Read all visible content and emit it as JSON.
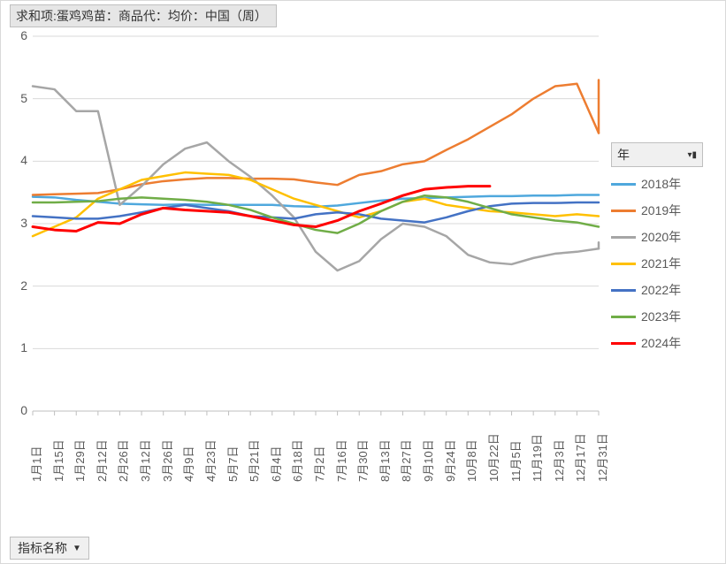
{
  "title": "求和项:蛋鸡鸡苗：商品代：均价：中国（周）",
  "legend_header": "年",
  "footer_button": "指标名称",
  "chart": {
    "type": "line",
    "background_color": "#ffffff",
    "plot_bg_color": "#ffffff",
    "grid_color": "#d9d9d9",
    "axis_color": "#bfbfbf",
    "ylim": [
      0,
      6
    ],
    "ytick_step": 1,
    "y_ticks": [
      0,
      1,
      2,
      3,
      4,
      5,
      6
    ],
    "x_labels": [
      "1月1日",
      "1月15日",
      "1月29日",
      "2月12日",
      "2月26日",
      "3月12日",
      "3月26日",
      "4月9日",
      "4月23日",
      "5月7日",
      "5月21日",
      "6月4日",
      "6月18日",
      "7月2日",
      "7月16日",
      "7月30日",
      "8月13日",
      "8月27日",
      "9月10日",
      "9月24日",
      "10月8日",
      "10月22日",
      "11月5日",
      "11月19日",
      "12月3日",
      "12月17日",
      "12月31日"
    ],
    "series": [
      {
        "name": "2018年",
        "color": "#4fa8dd",
        "width": 2.5,
        "values": [
          3.43,
          3.42,
          3.38,
          3.35,
          3.32,
          3.31,
          3.3,
          3.31,
          3.3,
          3.3,
          3.3,
          3.3,
          3.28,
          3.27,
          3.29,
          3.33,
          3.37,
          3.4,
          3.41,
          3.42,
          3.43,
          3.44,
          3.44,
          3.45,
          3.45,
          3.46,
          3.46
        ]
      },
      {
        "name": "2019年",
        "color": "#ed7d31",
        "width": 2.5,
        "values": [
          3.46,
          3.47,
          3.48,
          3.49,
          3.55,
          3.63,
          3.68,
          3.71,
          3.73,
          3.73,
          3.72,
          3.72,
          3.71,
          3.66,
          3.62,
          3.78,
          3.84,
          3.95,
          4.0,
          4.18,
          4.35,
          4.55,
          4.75,
          5.0,
          5.2,
          5.24,
          4.45
        ]
      },
      {
        "name": "2019年_tail",
        "color": "#ed7d31",
        "width": 2.5,
        "values_partial": {
          "26": 5.3
        },
        "hidden_in_legend": true
      },
      {
        "name": "2020年",
        "color": "#a6a6a6",
        "width": 2.5,
        "values": [
          5.2,
          5.15,
          4.8,
          4.8,
          3.3,
          3.6,
          3.95,
          4.2,
          4.3,
          4.0,
          3.75,
          3.45,
          3.1,
          2.55,
          2.25,
          2.4,
          2.75,
          3.0,
          2.95,
          2.8,
          2.5,
          2.38,
          2.35,
          2.45,
          2.52,
          2.55,
          2.6
        ]
      },
      {
        "name": "2020年_tail",
        "color": "#a6a6a6",
        "width": 2.5,
        "values_partial": {
          "26": 2.7
        },
        "hidden_in_legend": true
      },
      {
        "name": "2021年",
        "color": "#ffc000",
        "width": 2.5,
        "values": [
          2.8,
          2.95,
          3.1,
          3.4,
          3.55,
          3.7,
          3.76,
          3.82,
          3.8,
          3.78,
          3.7,
          3.55,
          3.4,
          3.3,
          3.2,
          3.1,
          3.2,
          3.35,
          3.4,
          3.3,
          3.25,
          3.2,
          3.18,
          3.15,
          3.12,
          3.15,
          3.12
        ]
      },
      {
        "name": "2022年",
        "color": "#4472c4",
        "width": 2.5,
        "values": [
          3.12,
          3.1,
          3.08,
          3.08,
          3.12,
          3.18,
          3.25,
          3.3,
          3.25,
          3.2,
          3.12,
          3.1,
          3.08,
          3.15,
          3.18,
          3.15,
          3.08,
          3.05,
          3.02,
          3.1,
          3.2,
          3.28,
          3.32,
          3.33,
          3.33,
          3.34,
          3.34
        ]
      },
      {
        "name": "2023年",
        "color": "#70ad47",
        "width": 2.5,
        "values": [
          3.34,
          3.34,
          3.35,
          3.36,
          3.4,
          3.42,
          3.4,
          3.38,
          3.35,
          3.3,
          3.22,
          3.1,
          3.0,
          2.9,
          2.85,
          3.0,
          3.2,
          3.35,
          3.45,
          3.42,
          3.35,
          3.25,
          3.15,
          3.1,
          3.05,
          3.02,
          2.95
        ]
      },
      {
        "name": "2024年",
        "color": "#ff0000",
        "width": 3,
        "values": [
          2.95,
          2.9,
          2.88,
          3.02,
          3.0,
          3.15,
          3.25,
          3.22,
          3.2,
          3.18,
          3.12,
          3.05,
          2.98,
          2.95,
          3.05,
          3.2,
          3.32,
          3.45,
          3.55,
          3.58,
          3.6,
          3.6,
          null,
          null,
          null,
          null,
          null
        ]
      }
    ],
    "legend_items": [
      {
        "label": "2018年",
        "color": "#4fa8dd"
      },
      {
        "label": "2019年",
        "color": "#ed7d31"
      },
      {
        "label": "2020年",
        "color": "#a6a6a6"
      },
      {
        "label": "2021年",
        "color": "#ffc000"
      },
      {
        "label": "2022年",
        "color": "#4472c4"
      },
      {
        "label": "2023年",
        "color": "#70ad47"
      },
      {
        "label": "2024年",
        "color": "#ff0000"
      }
    ],
    "label_fontsize": 14
  }
}
